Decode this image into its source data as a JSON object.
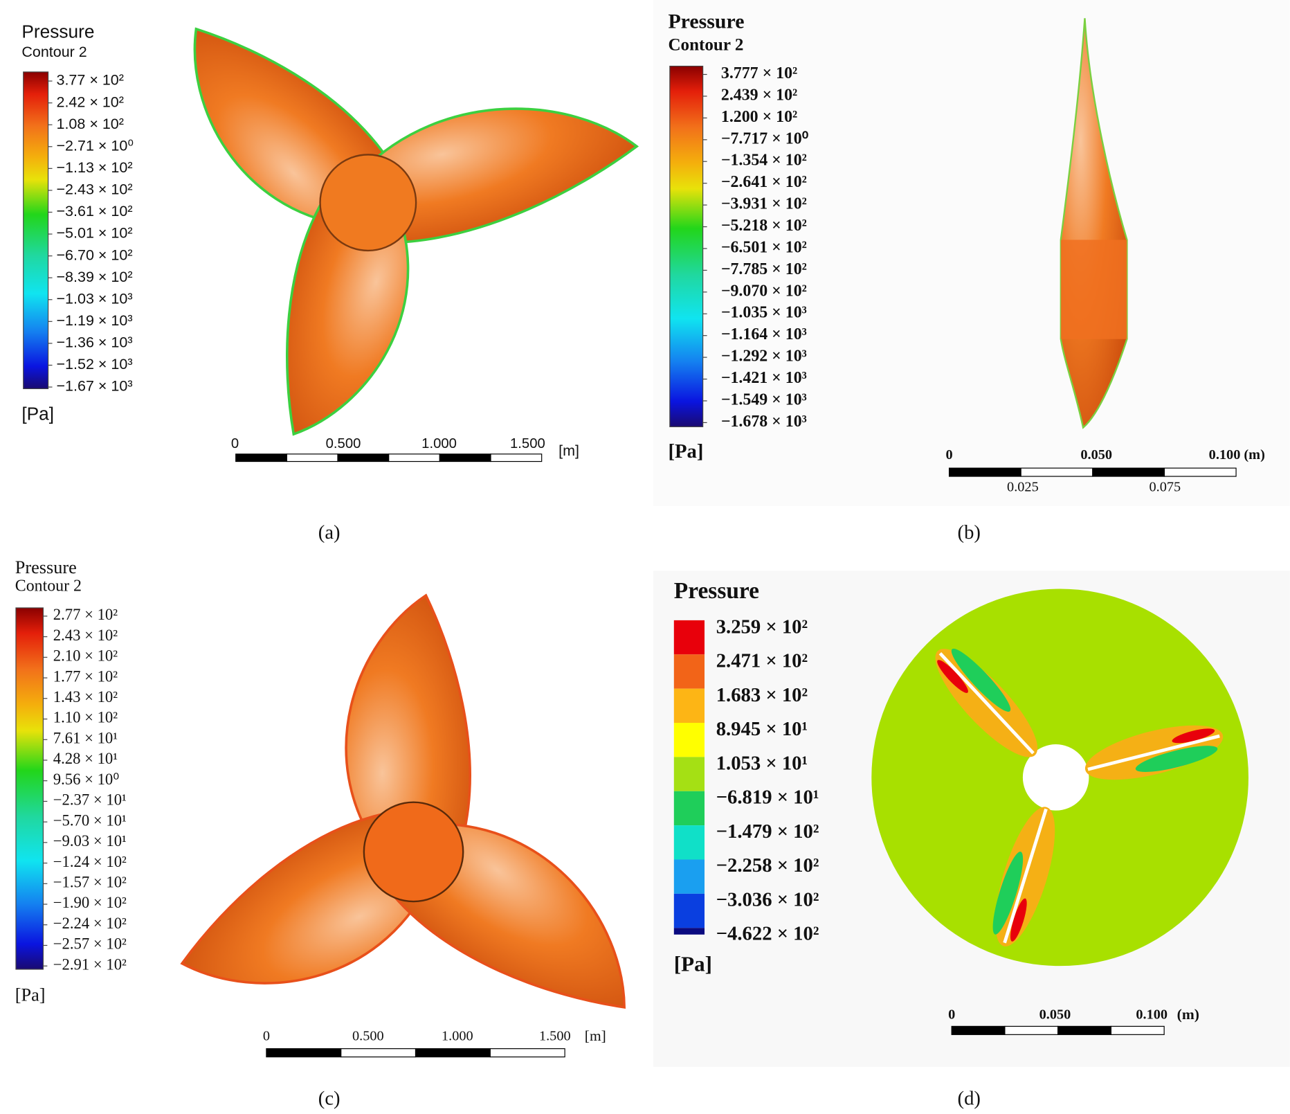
{
  "panels": [
    {
      "title": "Pressure",
      "subtitle": "Contour 2",
      "legend_labels": [
        "3.77 × 10²",
        "2.42 × 10²",
        "1.08 × 10²",
        "−2.71 × 10⁰",
        "−1.13 × 10²",
        "−2.43 × 10²",
        "−3.61 × 10²",
        "−5.01 × 10²",
        "−6.70 × 10²",
        "−8.39 × 10²",
        "−1.03 × 10³",
        "−1.19 × 10³",
        "−1.36 × 10³",
        "−1.52 × 10³",
        "−1.67 × 10³"
      ],
      "unit": "[Pa]",
      "scale_labels": [
        "0",
        "0.500",
        "1.000",
        "1.500"
      ],
      "scale_unit": "[m]",
      "caption": "(a)"
    },
    {
      "title": "Pressure",
      "subtitle": "Contour 2",
      "legend_labels": [
        "3.777 × 10²",
        "2.439 × 10²",
        "1.200 × 10²",
        "−7.717 × 10⁰",
        "−1.354 × 10²",
        "−2.641 × 10²",
        "−3.931 × 10²",
        "−5.218 × 10²",
        "−6.501 × 10²",
        "−7.785 × 10²",
        "−9.070 × 10²",
        "−1.035 × 10³",
        "−1.164 × 10³",
        "−1.292 × 10³",
        "−1.421 × 10³",
        "−1.549 × 10³",
        "−1.678 × 10³"
      ],
      "unit": "[Pa]",
      "scale_labels": [
        "0",
        "0.050",
        "0.100 (m)"
      ],
      "scale_labels_bottom": [
        "0.025",
        "0.075"
      ],
      "caption": "(b)"
    },
    {
      "title": "Pressure",
      "subtitle": "Contour 2",
      "legend_labels": [
        "2.77 × 10²",
        "2.43 × 10²",
        "2.10 × 10²",
        "1.77 × 10²",
        "1.43 × 10²",
        "1.10 × 10²",
        "7.61 × 10¹",
        "4.28 × 10¹",
        "9.56 × 10⁰",
        "−2.37 × 10¹",
        "−5.70 × 10¹",
        "−9.03 × 10¹",
        "−1.24 × 10²",
        "−1.57 × 10²",
        "−1.90 × 10²",
        "−2.24 × 10²",
        "−2.57 × 10²",
        "−2.91 × 10²"
      ],
      "unit": "[Pa]",
      "scale_labels": [
        "0",
        "0.500",
        "1.000",
        "1.500"
      ],
      "scale_unit": "[m]",
      "caption": "(c)"
    },
    {
      "title": "Pressure",
      "legend_labels": [
        "3.259 × 10²",
        "2.471 × 10²",
        "1.683 × 10²",
        "8.945 × 10¹",
        "1.053 × 10¹",
        "−6.819 × 10¹",
        "−1.479 × 10²",
        "−2.258 × 10²",
        "−3.036 × 10²",
        "−4.622 × 10²"
      ],
      "unit": "[Pa]",
      "scale_labels": [
        "0",
        "0.050",
        "0.100"
      ],
      "scale_unit": "(m)",
      "caption": "(d)"
    }
  ]
}
